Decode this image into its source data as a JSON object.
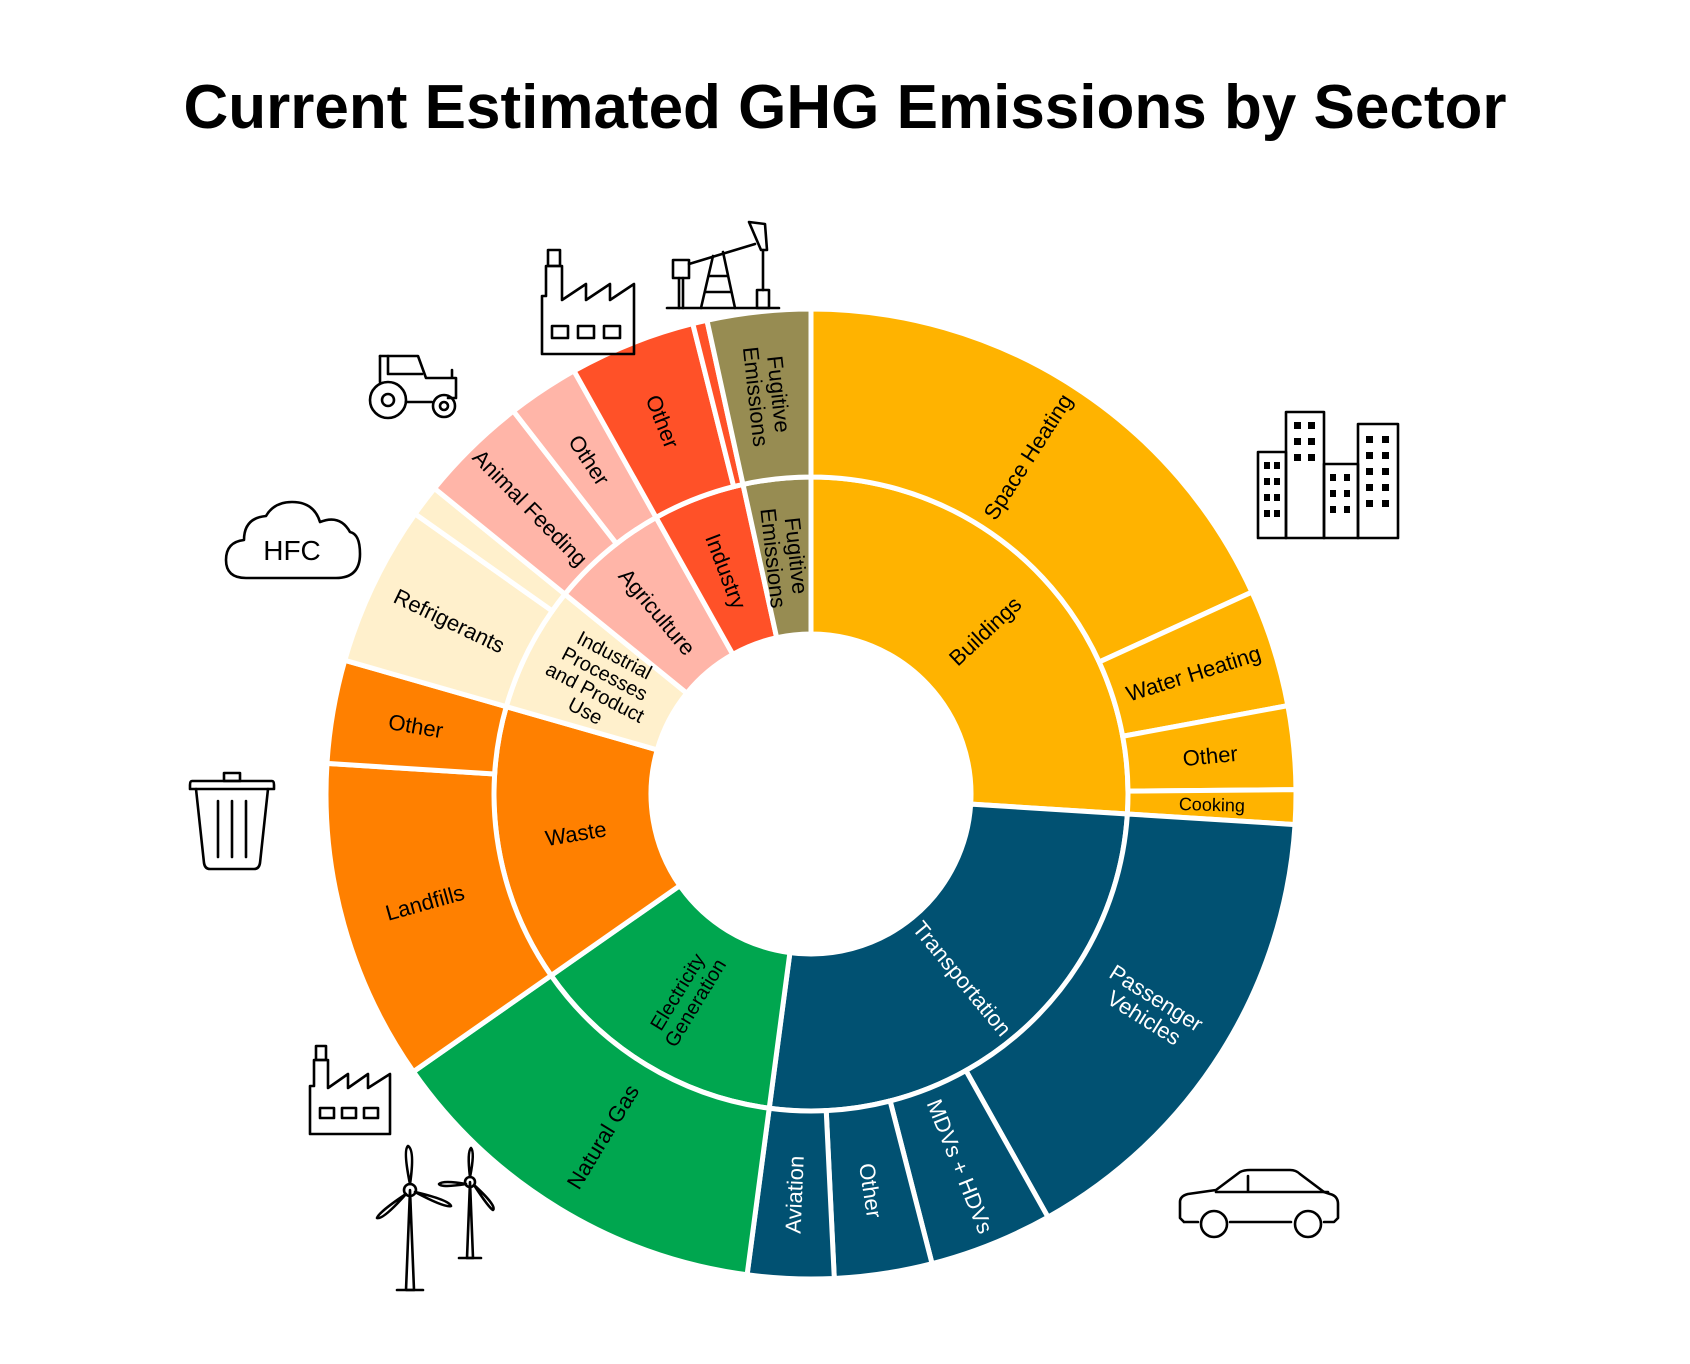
{
  "title": "Current Estimated GHG Emissions by Sector",
  "chart_data": {
    "type": "sunburst",
    "title": "Current Estimated GHG Emissions by Sector",
    "unit": "share of total emissions (%)",
    "sectors": [
      {
        "name": "Buildings",
        "color": "#FFB300",
        "text_color": "#000000",
        "children": [
          {
            "name": "Space Heating",
            "value": 19.0
          },
          {
            "name": "Water Heating",
            "value": 4.1
          },
          {
            "name": "Other",
            "value": 2.9
          },
          {
            "name": "Cooking",
            "value": 1.2
          }
        ]
      },
      {
        "name": "Transportation",
        "color": "#015172",
        "text_color": "#ffffff",
        "children": [
          {
            "name": "Passenger Vehicles",
            "value": 16.6
          },
          {
            "name": "MDVs + HDVs",
            "value": 4.3
          },
          {
            "name": "Other",
            "value": 3.4
          },
          {
            "name": "Aviation",
            "value": 3.0
          }
        ]
      },
      {
        "name": "Electricity Generation",
        "color": "#00A64F",
        "text_color": "#000000",
        "children": [
          {
            "name": "Natural Gas",
            "value": 13.8
          }
        ]
      },
      {
        "name": "Waste",
        "color": "#FF8000",
        "text_color": "#000000",
        "children": [
          {
            "name": "Landfills",
            "value": 11.2
          },
          {
            "name": "Other",
            "value": 3.6
          }
        ]
      },
      {
        "name": "Industrial Processes and Product Use",
        "color": "#FFF0CC",
        "text_color": "#000000",
        "children": [
          {
            "name": "Refrigerants",
            "value": 5.6
          },
          {
            "name": "",
            "value": 1.1
          }
        ]
      },
      {
        "name": "Agriculture",
        "color": "#FFB5A8",
        "text_color": "#000000",
        "children": [
          {
            "name": "Animal Feeding",
            "value": 3.8
          },
          {
            "name": "Other",
            "value": 2.5
          }
        ]
      },
      {
        "name": "Industry",
        "color": "#FF5128",
        "text_color": "#000000",
        "children": [
          {
            "name": "Other",
            "value": 4.4
          },
          {
            "name": "",
            "value": 0.5
          }
        ]
      },
      {
        "name": "Fugitive Emissions",
        "color": "#978C52",
        "text_color": "#000000",
        "children": [
          {
            "name": "Fugitive Emissions",
            "value": 3.6
          }
        ]
      }
    ],
    "icons": [
      {
        "name": "buildings-icon",
        "near": "Buildings"
      },
      {
        "name": "car-icon",
        "near": "Transportation"
      },
      {
        "name": "factory-icon",
        "near": "Electricity Generation"
      },
      {
        "name": "wind-turbines-icon",
        "near": "Electricity Generation"
      },
      {
        "name": "trash-can-icon",
        "near": "Waste"
      },
      {
        "name": "hfc-cloud-icon",
        "near": "Industrial Processes and Product Use",
        "text": "HFC"
      },
      {
        "name": "tractor-icon",
        "near": "Agriculture"
      },
      {
        "name": "factory-icon",
        "near": "Industry"
      },
      {
        "name": "oil-pump-icon",
        "near": "Fugitive Emissions"
      }
    ]
  }
}
